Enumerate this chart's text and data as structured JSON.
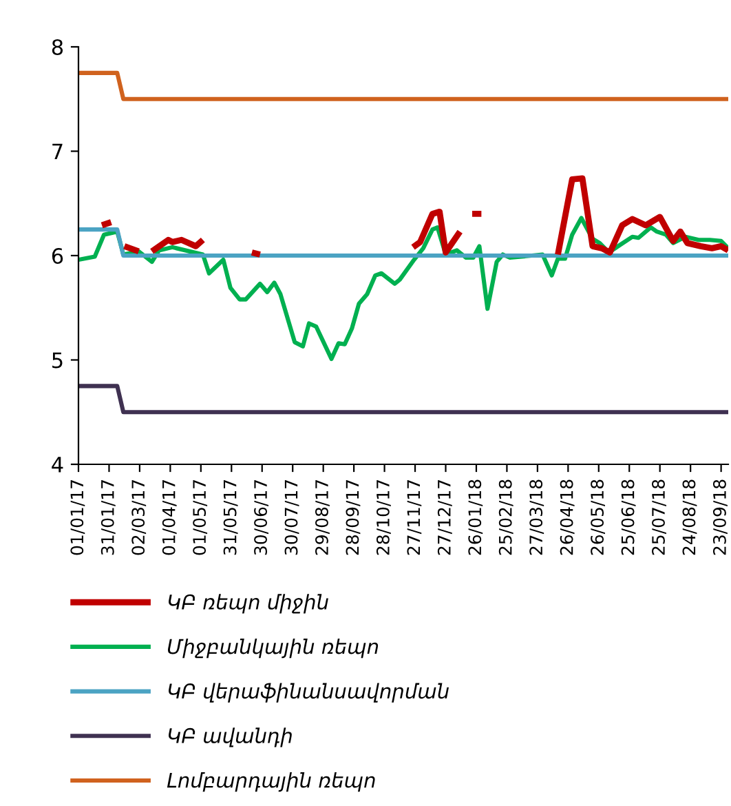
{
  "chart_data": {
    "type": "line",
    "ylim": [
      4,
      8
    ],
    "yticks": [
      4,
      5,
      6,
      7,
      8
    ],
    "xlim": [
      "2017-01-01",
      "2018-09-30"
    ],
    "xticks": [
      {
        "value": "2017-01-01",
        "label": "01/01/17"
      },
      {
        "value": "2017-01-31",
        "label": "31/01/17"
      },
      {
        "value": "2017-03-02",
        "label": "02/03/17"
      },
      {
        "value": "2017-04-01",
        "label": "01/04/17"
      },
      {
        "value": "2017-05-01",
        "label": "01/05/17"
      },
      {
        "value": "2017-05-31",
        "label": "31/05/17"
      },
      {
        "value": "2017-06-30",
        "label": "30/06/17"
      },
      {
        "value": "2017-07-30",
        "label": "30/07/17"
      },
      {
        "value": "2017-08-29",
        "label": "29/08/17"
      },
      {
        "value": "2017-09-28",
        "label": "28/09/17"
      },
      {
        "value": "2017-10-28",
        "label": "28/10/17"
      },
      {
        "value": "2017-11-27",
        "label": "27/11/17"
      },
      {
        "value": "2017-12-27",
        "label": "27/12/17"
      },
      {
        "value": "2018-01-26",
        "label": "26/01/18"
      },
      {
        "value": "2018-02-25",
        "label": "25/02/18"
      },
      {
        "value": "2018-03-27",
        "label": "27/03/18"
      },
      {
        "value": "2018-04-26",
        "label": "26/04/18"
      },
      {
        "value": "2018-05-26",
        "label": "26/05/18"
      },
      {
        "value": "2018-06-25",
        "label": "25/06/18"
      },
      {
        "value": "2018-07-25",
        "label": "25/07/18"
      },
      {
        "value": "2018-08-24",
        "label": "24/08/18"
      },
      {
        "value": "2018-09-23",
        "label": "23/09/18"
      }
    ],
    "grid": false,
    "legend": "bottom",
    "marker": "none",
    "line_style": "solid",
    "series": [
      {
        "name": "ԿԲ ռեպո միջին",
        "color": "#c00000",
        "x": [
          "2017-01-24",
          "2017-02-02",
          "2017-02-05",
          "2017-02-15",
          "2017-03-01",
          "2017-03-07",
          "2017-03-14",
          "2017-03-30",
          "2017-04-03",
          "2017-04-12",
          "2017-04-26",
          "2017-05-03",
          "2017-05-20",
          "2017-06-20",
          "2017-06-28",
          "2017-07-10",
          "2017-11-25",
          "2017-12-02",
          "2017-12-14",
          "2017-12-21",
          "2017-12-27",
          "2018-01-10",
          "2018-01-14",
          "2018-01-22",
          "2018-01-31",
          "2018-02-10",
          "2018-04-16",
          "2018-04-30",
          "2018-05-10",
          "2018-05-20",
          "2018-05-29",
          "2018-06-06",
          "2018-06-18",
          "2018-06-28",
          "2018-07-11",
          "2018-07-25",
          "2018-08-07",
          "2018-08-14",
          "2018-08-21",
          "2018-09-03",
          "2018-09-14",
          "2018-09-23",
          "2018-09-30"
        ],
        "values": [
          6.29,
          6.32,
          null,
          6.09,
          6.04,
          null,
          6.04,
          6.15,
          6.13,
          6.15,
          6.09,
          6.15,
          null,
          6.03,
          6.01,
          null,
          6.08,
          6.13,
          6.4,
          6.42,
          6.03,
          6.23,
          null,
          6.4,
          6.4,
          null,
          6.01,
          6.73,
          6.74,
          6.09,
          6.07,
          6.03,
          6.29,
          6.35,
          6.29,
          6.37,
          6.14,
          6.23,
          6.12,
          6.09,
          6.07,
          6.09,
          6.05
        ]
      },
      {
        "name": "Միջբանկային ռեպո",
        "color": "#00b050",
        "x": [
          "2017-01-01",
          "2017-01-17",
          "2017-01-26",
          "2017-02-08",
          "2017-02-14",
          "2017-03-01",
          "2017-03-14",
          "2017-03-21",
          "2017-04-03",
          "2017-05-03",
          "2017-05-09",
          "2017-05-23",
          "2017-05-30",
          "2017-06-08",
          "2017-06-14",
          "2017-06-28",
          "2017-07-05",
          "2017-07-12",
          "2017-07-18",
          "2017-08-01",
          "2017-08-09",
          "2017-08-15",
          "2017-08-22",
          "2017-09-06",
          "2017-09-13",
          "2017-09-19",
          "2017-09-26",
          "2017-10-03",
          "2017-10-11",
          "2017-10-19",
          "2017-10-25",
          "2017-11-07",
          "2017-11-12",
          "2017-11-26",
          "2017-12-05",
          "2017-12-14",
          "2017-12-19",
          "2017-12-27",
          "2018-01-07",
          "2018-01-16",
          "2018-01-23",
          "2018-01-29",
          "2018-02-06",
          "2018-02-15",
          "2018-02-21",
          "2018-02-28",
          "2018-04-01",
          "2018-04-10",
          "2018-04-16",
          "2018-04-23",
          "2018-04-30",
          "2018-05-09",
          "2018-05-20",
          "2018-05-27",
          "2018-06-05",
          "2018-06-14",
          "2018-06-28",
          "2018-07-04",
          "2018-07-16",
          "2018-07-22",
          "2018-07-31",
          "2018-08-07",
          "2018-08-19",
          "2018-09-01",
          "2018-09-12",
          "2018-09-23",
          "2018-09-30"
        ],
        "values": [
          5.96,
          5.99,
          6.2,
          6.23,
          6.01,
          6.04,
          5.94,
          6.05,
          6.08,
          6.01,
          5.83,
          5.96,
          5.69,
          5.58,
          5.58,
          5.73,
          5.65,
          5.74,
          5.63,
          5.17,
          5.13,
          5.35,
          5.32,
          5.01,
          5.16,
          5.15,
          5.3,
          5.54,
          5.63,
          5.81,
          5.83,
          5.73,
          5.77,
          5.96,
          6.07,
          6.25,
          6.27,
          6.01,
          6.05,
          5.98,
          5.98,
          6.09,
          5.49,
          5.94,
          6.01,
          5.98,
          6.01,
          5.81,
          5.97,
          5.97,
          6.2,
          6.36,
          6.16,
          6.12,
          6.03,
          6.09,
          6.18,
          6.17,
          6.27,
          6.23,
          6.2,
          6.12,
          6.18,
          6.15,
          6.15,
          6.14,
          6.07
        ]
      },
      {
        "name": "ԿԲ վերաֆինանսավորման",
        "color": "#4ba3c3",
        "x": [
          "2017-01-01",
          "2017-02-08",
          "2017-02-14",
          "2018-09-30"
        ],
        "values": [
          6.25,
          6.25,
          6.0,
          6.0
        ]
      },
      {
        "name": "ԿԲ ավանդի",
        "color": "#3f3151",
        "x": [
          "2017-01-01",
          "2017-02-08",
          "2017-02-14",
          "2018-09-30"
        ],
        "values": [
          4.75,
          4.75,
          4.5,
          4.5
        ]
      },
      {
        "name": "Լոմբարդային ռեպո",
        "color": "#d0621e",
        "x": [
          "2017-01-01",
          "2017-02-08",
          "2017-02-14",
          "2018-09-30"
        ],
        "values": [
          7.75,
          7.75,
          7.5,
          7.5
        ]
      }
    ]
  }
}
